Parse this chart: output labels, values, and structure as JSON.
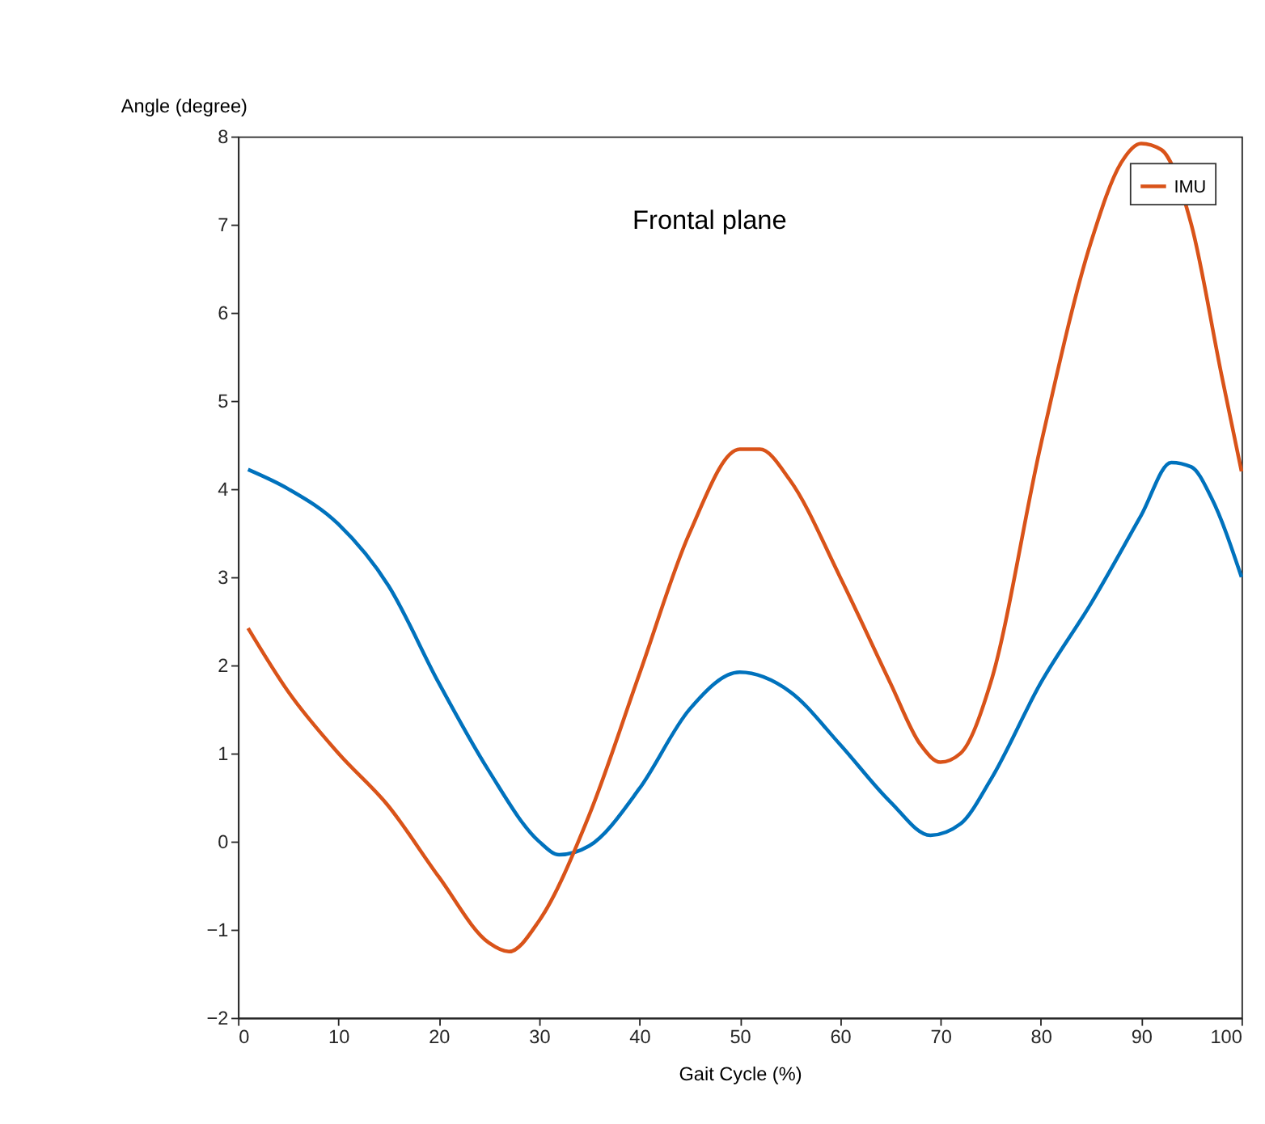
{
  "chart_data": {
    "type": "line",
    "xlabel": "Gait Cycle (%)",
    "ylabel": "Angle (degree)",
    "annotations": [
      "Frontal plane"
    ],
    "xlim": [
      0,
      100
    ],
    "xticks": [
      0,
      10,
      20,
      30,
      40,
      50,
      60,
      70,
      80,
      90,
      100
    ],
    "ylim": [
      -2,
      8
    ],
    "yticks": [
      -2,
      -1,
      0,
      1,
      2,
      3,
      4,
      5,
      6,
      7,
      8
    ],
    "grid": false,
    "legend": "top right",
    "line_style": "solid",
    "marker": "none",
    "series": [
      {
        "color": "#0072bd",
        "x": [
          1,
          5,
          10,
          15,
          20,
          25,
          30,
          32,
          35,
          40,
          45,
          50,
          55,
          60,
          65,
          69,
          72,
          75,
          80,
          85,
          90,
          93,
          95,
          97,
          100
        ],
        "values": [
          4.22,
          4.0,
          3.6,
          2.9,
          1.8,
          0.8,
          0.0,
          -0.15,
          -0.05,
          0.6,
          1.5,
          1.92,
          1.7,
          1.1,
          0.45,
          0.07,
          0.2,
          0.7,
          1.8,
          2.7,
          3.7,
          4.3,
          4.25,
          3.9,
          3.0
        ]
      },
      {
        "name": "IMU",
        "color": "#d95319",
        "x": [
          1,
          5,
          10,
          15,
          20,
          25,
          27,
          30,
          35,
          40,
          45,
          50,
          52,
          55,
          60,
          65,
          68,
          70,
          72,
          75,
          80,
          85,
          88,
          90,
          92,
          95,
          98,
          100
        ],
        "values": [
          2.42,
          1.7,
          1.0,
          0.4,
          -0.4,
          -1.15,
          -1.25,
          -0.9,
          0.3,
          1.9,
          3.5,
          4.45,
          4.45,
          4.1,
          3.0,
          1.8,
          1.1,
          0.9,
          1.0,
          1.8,
          4.5,
          6.8,
          7.7,
          7.92,
          7.85,
          7.0,
          5.3,
          4.2
        ]
      }
    ]
  }
}
